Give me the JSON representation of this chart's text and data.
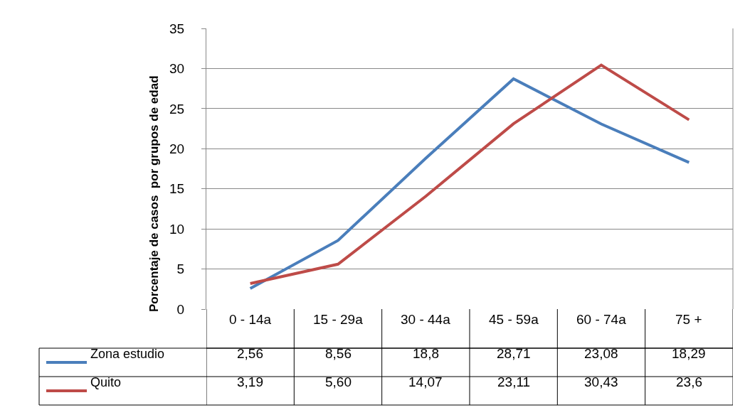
{
  "chart_data": {
    "type": "line",
    "ylabel": "Porcentaje de casos  por grupos de edad",
    "categories": [
      "0 - 14a",
      "15 - 29a",
      "30 - 44a",
      "45 - 59a",
      "60 - 74a",
      "75 +"
    ],
    "ylim": [
      0,
      35
    ],
    "yticks": [
      0,
      5,
      10,
      15,
      20,
      25,
      30,
      35
    ],
    "grid": "y",
    "legend": "bottom left",
    "marker": "none",
    "line_style": "solid",
    "series": [
      {
        "name": "Zona estudio",
        "color": "#4a7ebb",
        "values": [
          2.56,
          8.56,
          18.8,
          28.71,
          23.08,
          18.29
        ],
        "value_labels": [
          "2,56",
          "8,56",
          "18,8",
          "28,71",
          "23,08",
          "18,29"
        ]
      },
      {
        "name": "Quito",
        "color": "#be4b48",
        "values": [
          3.19,
          5.6,
          14.07,
          23.11,
          30.43,
          23.6
        ],
        "value_labels": [
          "3,19",
          "5,60",
          "14,07",
          "23,11",
          "30,43",
          "23,6"
        ]
      }
    ]
  }
}
